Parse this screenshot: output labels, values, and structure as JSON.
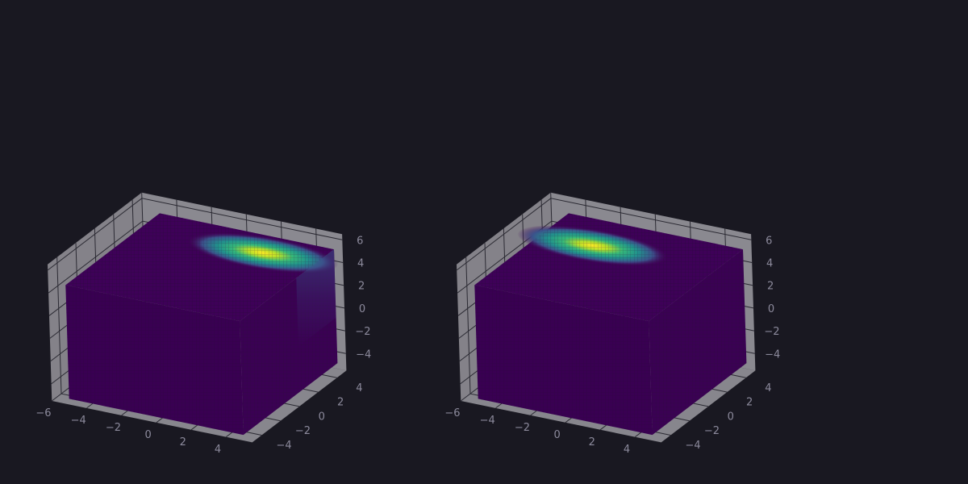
{
  "theme": {
    "background": "#191821",
    "pane_color": "#8d8c93",
    "grid_color": "#2b2a33",
    "tick_label_color": "#8c8a9c",
    "colormap": [
      "#3b0055",
      "#440154",
      "#3b528b",
      "#21918c",
      "#5ec962",
      "#fde725"
    ]
  },
  "chart_data": [
    {
      "type": "3d-voxel-scatter",
      "title": "",
      "xlabel": "",
      "ylabel": "",
      "zlabel": "",
      "xlim": [
        -6,
        5.5
      ],
      "ylim": [
        -5,
        5
      ],
      "zlim": [
        -5.5,
        6.5
      ],
      "xticks": [
        "−6",
        "−4",
        "−2",
        "0",
        "2",
        "4"
      ],
      "yticks": [
        "−4",
        "−2",
        "0",
        "2",
        "4"
      ],
      "zticks": [
        "−4",
        "−2",
        "0",
        "2",
        "4",
        "6"
      ],
      "grid": true,
      "data_extent": {
        "x": [
          -5,
          5
        ],
        "y": [
          -5,
          5
        ],
        "z": [
          -5,
          5
        ]
      },
      "hotspot": {
        "x": 2,
        "y": 3,
        "z": 5,
        "peak_value": 1.0,
        "background_value": 0.0
      }
    },
    {
      "type": "3d-voxel-scatter",
      "title": "",
      "xlabel": "",
      "ylabel": "",
      "zlabel": "",
      "xlim": [
        -6,
        5.5
      ],
      "ylim": [
        -5,
        5
      ],
      "zlim": [
        -5.5,
        6.5
      ],
      "xticks": [
        "−6",
        "−4",
        "−2",
        "0",
        "2",
        "4"
      ],
      "yticks": [
        "−4",
        "−2",
        "0",
        "2",
        "4"
      ],
      "zticks": [
        "−4",
        "−2",
        "0",
        "2",
        "4",
        "6"
      ],
      "grid": true,
      "data_extent": {
        "x": [
          -5,
          5
        ],
        "y": [
          -5,
          5
        ],
        "z": [
          -5,
          5
        ]
      },
      "hotspot": {
        "x": -2,
        "y": 2,
        "z": 5,
        "peak_value": 1.0,
        "background_value": 0.0
      }
    }
  ]
}
